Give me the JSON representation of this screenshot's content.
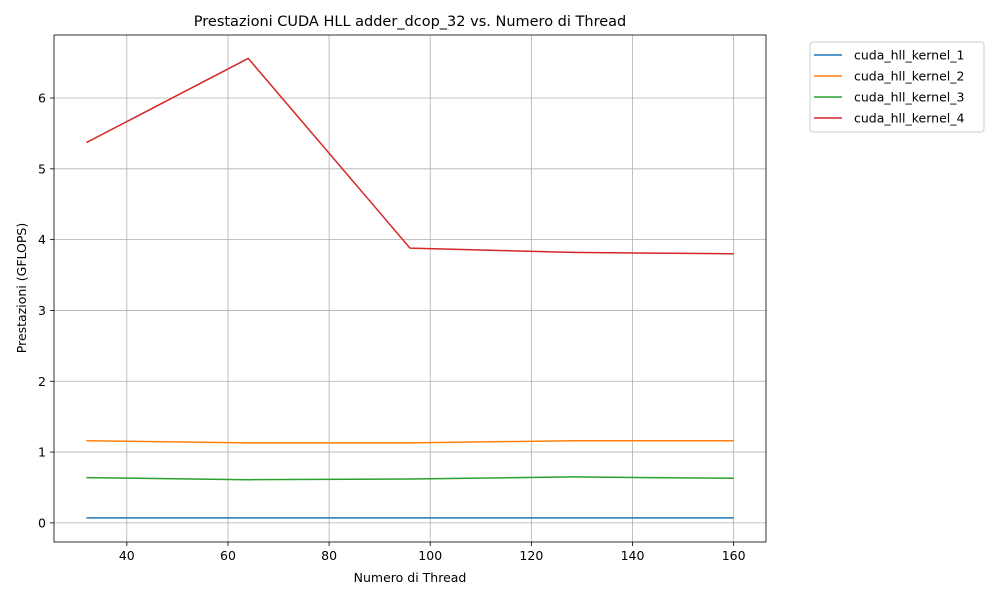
{
  "chart_data": {
    "type": "line",
    "title": "Prestazioni CUDA HLL adder_dcop_32 vs. Numero di Thread",
    "xlabel": "Numero di Thread",
    "ylabel": "Prestazioni (GFLOPS)",
    "xlim": [
      25.6,
      166.4
    ],
    "ylim": [
      -0.27,
      6.89
    ],
    "xticks": [
      40,
      60,
      80,
      100,
      120,
      140,
      160
    ],
    "yticks": [
      0,
      1,
      2,
      3,
      4,
      5,
      6
    ],
    "grid": true,
    "legend_placement": "outside-top-right",
    "x": [
      32,
      64,
      96,
      128,
      160
    ],
    "series": [
      {
        "name": "cuda_hll_kernel_1",
        "color": "#1f77b4",
        "values": [
          0.07,
          0.07,
          0.07,
          0.07,
          0.07
        ]
      },
      {
        "name": "cuda_hll_kernel_2",
        "color": "#ff7f0e",
        "values": [
          1.16,
          1.13,
          1.13,
          1.16,
          1.16
        ]
      },
      {
        "name": "cuda_hll_kernel_3",
        "color": "#2ca02c",
        "values": [
          0.64,
          0.61,
          0.62,
          0.65,
          0.63
        ]
      },
      {
        "name": "cuda_hll_kernel_4",
        "color": "#d62728",
        "values": [
          5.37,
          6.56,
          3.88,
          3.82,
          3.8
        ]
      }
    ]
  }
}
